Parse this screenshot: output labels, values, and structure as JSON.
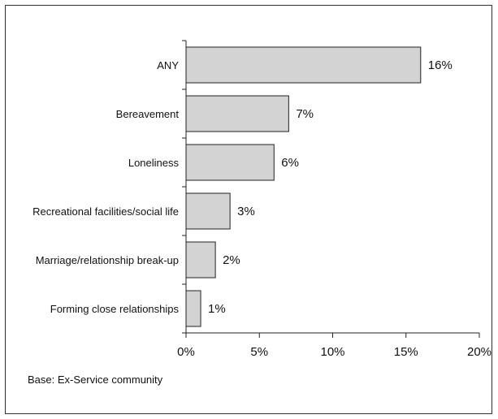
{
  "chart_data": {
    "type": "bar",
    "orientation": "horizontal",
    "categories": [
      "ANY",
      "Bereavement",
      "Loneliness",
      "Recreational facilities/social life",
      "Marriage/relationship break-up",
      "Forming close relationships"
    ],
    "values": [
      16,
      7,
      6,
      3,
      2,
      1
    ],
    "value_labels": [
      "16%",
      "7%",
      "6%",
      "3%",
      "2%",
      "1%"
    ],
    "xlim": [
      0,
      20
    ],
    "x_ticks": [
      0,
      5,
      10,
      15,
      20
    ],
    "x_tick_labels": [
      "0%",
      "5%",
      "10%",
      "15%",
      "20%"
    ],
    "grid": false,
    "bar_color": "#d3d3d3",
    "bar_edge_color": "#222222"
  },
  "base_note": "Base: Ex-Service community"
}
